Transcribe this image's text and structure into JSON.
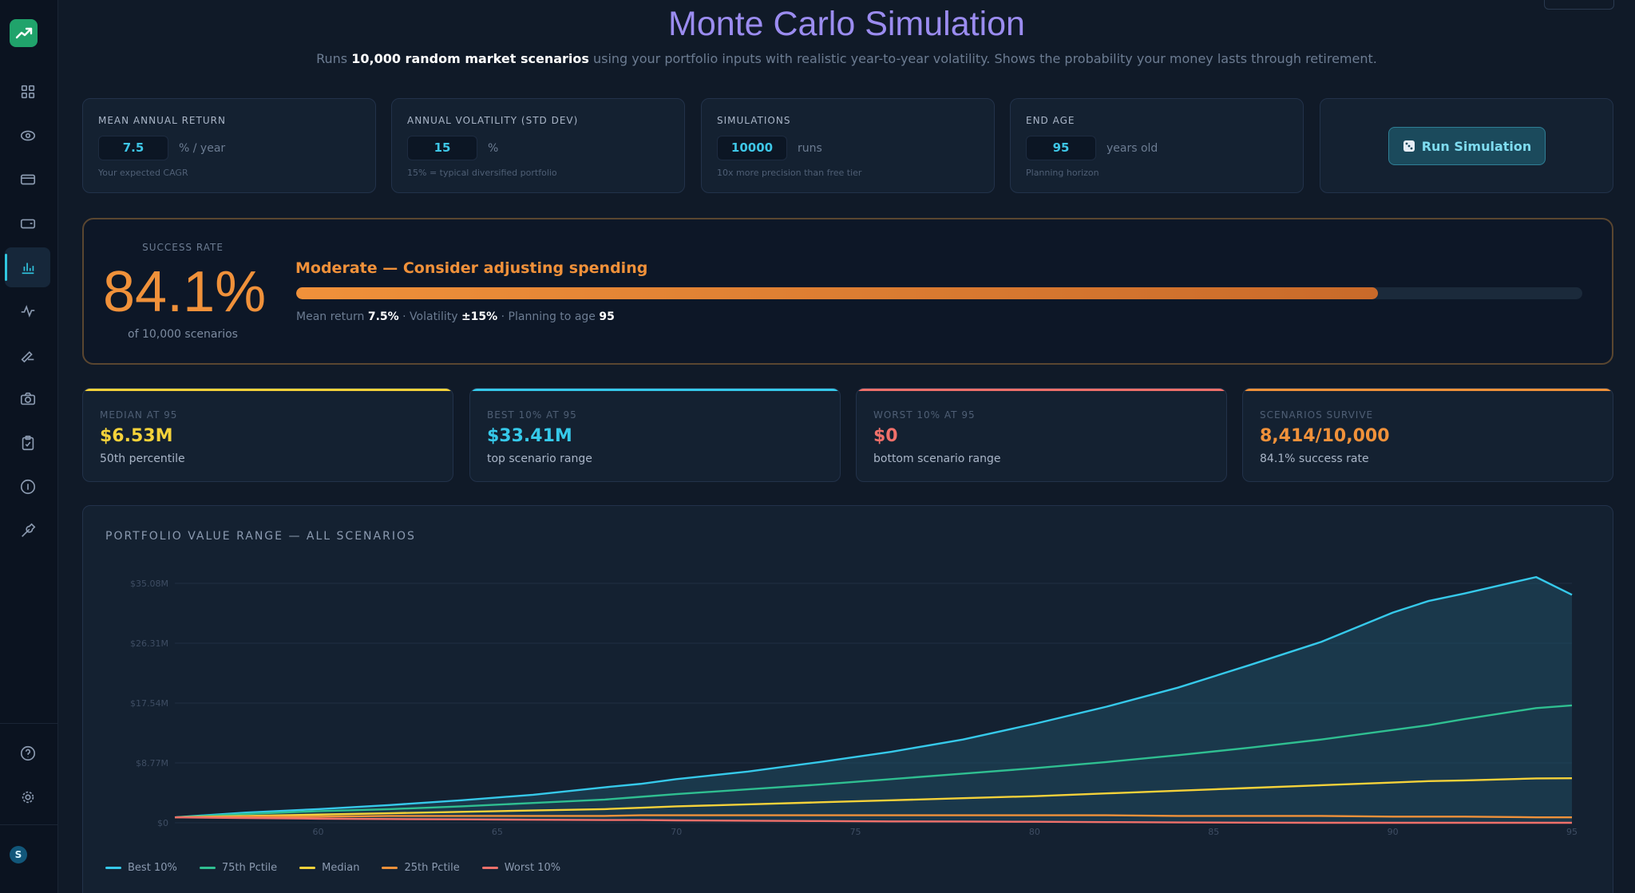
{
  "header": {
    "title": "Monte Carlo Simulation",
    "subtitle_pre": "Runs ",
    "subtitle_bold": "10,000 random market scenarios",
    "subtitle_post": " using your portfolio inputs with realistic year-to-year volatility. Shows the probability your money lasts through retirement."
  },
  "sidebar": {
    "items": [
      {
        "icon": "grid-icon"
      },
      {
        "icon": "eye-icon"
      },
      {
        "icon": "card-icon"
      },
      {
        "icon": "wallet-icon"
      },
      {
        "icon": "bar-chart-icon",
        "active": true
      },
      {
        "icon": "pulse-icon"
      },
      {
        "icon": "signature-icon"
      },
      {
        "icon": "camera-icon"
      },
      {
        "icon": "clipboard-icon"
      },
      {
        "icon": "info-icon"
      },
      {
        "icon": "wrench-icon"
      }
    ],
    "bottom": [
      {
        "icon": "help-icon"
      },
      {
        "icon": "gear-icon"
      }
    ],
    "avatar": "S"
  },
  "inputs": [
    {
      "label": "MEAN ANNUAL RETURN",
      "value": "7.5",
      "unit": "% / year",
      "hint": "Your expected CAGR"
    },
    {
      "label": "ANNUAL VOLATILITY (STD DEV)",
      "value": "15",
      "unit": "%",
      "hint": "15% = typical diversified portfolio"
    },
    {
      "label": "SIMULATIONS",
      "value": "10000",
      "unit": "runs",
      "hint": "10x more precision than free tier"
    },
    {
      "label": "END AGE",
      "value": "95",
      "unit": "years old",
      "hint": "Planning horizon"
    }
  ],
  "run_button": {
    "icon": "dice-icon",
    "label": "Run Simulation"
  },
  "success": {
    "label": "SUCCESS RATE",
    "value": "84.1%",
    "sub": "of 10,000 scenarios",
    "headline": "Moderate — Consider adjusting spending",
    "progress": 0.841,
    "meta_mean_label": "Mean return ",
    "meta_mean": "7.5%",
    "meta_vol_label": " · Volatility ",
    "meta_vol": "±15%",
    "meta_age_label": " · Planning to age ",
    "meta_age": "95"
  },
  "stats": [
    {
      "label": "MEDIAN AT 95",
      "value": "$6.53M",
      "sub": "50th percentile",
      "color": "#f5d23a"
    },
    {
      "label": "BEST 10% AT 95",
      "value": "$33.41M",
      "sub": "top scenario range",
      "color": "#36c9ea"
    },
    {
      "label": "WORST 10% AT 95",
      "value": "$0",
      "sub": "bottom scenario range",
      "color": "#f0706a"
    },
    {
      "label": "SCENARIOS SURVIVE",
      "value": "8,414/10,000",
      "sub": "84.1% success rate",
      "color": "#f0913a"
    }
  ],
  "chart_data": {
    "type": "line",
    "title": "PORTFOLIO VALUE RANGE — ALL SCENARIOS",
    "xlabel": "",
    "ylabel": "",
    "x_ticks": [
      "60",
      "65",
      "70",
      "75",
      "80",
      "85",
      "90",
      "95"
    ],
    "y_ticks": [
      "$0",
      "$8.77M",
      "$17.54M",
      "$26.31M",
      "$35.08M"
    ],
    "xlim": [
      56,
      95
    ],
    "ylim": [
      0,
      35.08
    ],
    "x": [
      56,
      58,
      60,
      62,
      64,
      66,
      68,
      69,
      70,
      72,
      74,
      76,
      78,
      80,
      82,
      84,
      86,
      88,
      90,
      91,
      92,
      94,
      95
    ],
    "series": [
      {
        "name": "Best 10%",
        "color": "#36c9ea",
        "values": [
          0.8,
          1.5,
          2.0,
          2.6,
          3.3,
          4.1,
          5.2,
          5.7,
          6.4,
          7.5,
          8.9,
          10.4,
          12.2,
          14.5,
          17.0,
          19.8,
          23.1,
          26.5,
          30.8,
          32.5,
          33.6,
          36.0,
          33.41
        ]
      },
      {
        "name": "75th Pctile",
        "color": "#2fbf91",
        "values": [
          0.8,
          1.3,
          1.7,
          2.0,
          2.4,
          2.9,
          3.4,
          3.8,
          4.2,
          4.9,
          5.6,
          6.4,
          7.2,
          8.0,
          8.9,
          9.9,
          11.0,
          12.2,
          13.6,
          14.3,
          15.2,
          16.8,
          17.2
        ]
      },
      {
        "name": "Median",
        "color": "#f5d23a",
        "values": [
          0.8,
          1.0,
          1.2,
          1.4,
          1.6,
          1.8,
          2.0,
          2.2,
          2.4,
          2.7,
          3.0,
          3.3,
          3.6,
          3.9,
          4.3,
          4.7,
          5.1,
          5.5,
          5.9,
          6.1,
          6.2,
          6.5,
          6.53
        ]
      },
      {
        "name": "25th Pctile",
        "color": "#f0913a",
        "values": [
          0.8,
          0.9,
          0.9,
          1.0,
          1.0,
          1.0,
          1.0,
          1.1,
          1.1,
          1.1,
          1.1,
          1.1,
          1.1,
          1.1,
          1.1,
          1.0,
          1.0,
          1.0,
          0.9,
          0.9,
          0.9,
          0.8,
          0.8
        ]
      },
      {
        "name": "Worst 10%",
        "color": "#f0706a",
        "values": [
          0.8,
          0.7,
          0.6,
          0.55,
          0.5,
          0.45,
          0.4,
          0.4,
          0.35,
          0.3,
          0.25,
          0.2,
          0.18,
          0.15,
          0.1,
          0.05,
          0.02,
          0.0,
          0.0,
          0.0,
          0.0,
          0.0,
          0.0
        ]
      }
    ],
    "grid": true,
    "legend_position": "bottom-left"
  }
}
